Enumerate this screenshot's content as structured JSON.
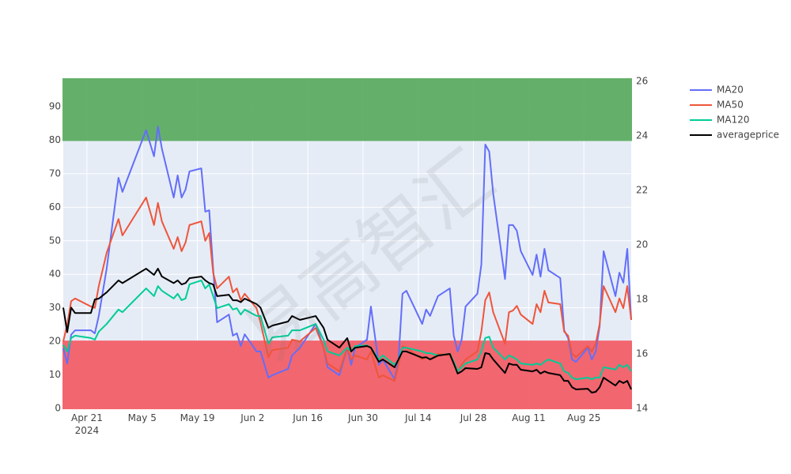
{
  "chart_data": {
    "type": "line",
    "x": [
      "2024-04-15",
      "2024-04-16",
      "2024-04-17",
      "2024-04-18",
      "2024-04-22",
      "2024-04-23",
      "2024-04-24",
      "2024-04-26",
      "2024-04-29",
      "2024-04-30",
      "2024-05-06",
      "2024-05-08",
      "2024-05-09",
      "2024-05-10",
      "2024-05-13",
      "2024-05-14",
      "2024-05-15",
      "2024-05-16",
      "2024-05-17",
      "2024-05-20",
      "2024-05-21",
      "2024-05-22",
      "2024-05-23",
      "2024-05-24",
      "2024-05-27",
      "2024-05-28",
      "2024-05-29",
      "2024-05-30",
      "2024-05-31",
      "2024-06-03",
      "2024-06-04",
      "2024-06-06",
      "2024-06-07",
      "2024-06-11",
      "2024-06-12",
      "2024-06-14",
      "2024-06-18",
      "2024-06-20",
      "2024-06-21",
      "2024-06-24",
      "2024-06-26",
      "2024-06-27",
      "2024-06-28",
      "2024-07-01",
      "2024-07-02",
      "2024-07-04",
      "2024-07-05",
      "2024-07-08",
      "2024-07-09",
      "2024-07-10",
      "2024-07-11",
      "2024-07-15",
      "2024-07-16",
      "2024-07-17",
      "2024-07-19",
      "2024-07-22",
      "2024-07-23",
      "2024-07-24",
      "2024-07-25",
      "2024-07-26",
      "2024-07-29",
      "2024-07-30",
      "2024-07-31",
      "2024-08-01",
      "2024-08-02",
      "2024-08-05",
      "2024-08-06",
      "2024-08-07",
      "2024-08-08",
      "2024-08-09",
      "2024-08-12",
      "2024-08-13",
      "2024-08-14",
      "2024-08-15",
      "2024-08-16",
      "2024-08-19",
      "2024-08-20",
      "2024-08-21",
      "2024-08-22",
      "2024-08-23",
      "2024-08-26",
      "2024-08-27",
      "2024-08-28",
      "2024-08-29",
      "2024-08-30",
      "2024-09-02",
      "2024-09-03",
      "2024-09-04",
      "2024-09-05",
      "2024-09-06"
    ],
    "series": [
      {
        "name": "MA20",
        "color": "#636efa",
        "values": [
          18,
          13.4,
          22,
          23.3,
          23.3,
          22.4,
          27.6,
          41.7,
          68.8,
          64.6,
          83,
          75.2,
          84.1,
          77.5,
          62.9,
          69.5,
          62.9,
          65.3,
          70.7,
          71.6,
          58.7,
          59.1,
          41.7,
          25.7,
          28,
          21.7,
          22.4,
          18.6,
          22.1,
          17,
          17,
          9.2,
          9.9,
          11.8,
          15.8,
          18.1,
          25.2,
          18.1,
          12.3,
          9.9,
          18.1,
          13,
          18.1,
          20.5,
          30.4,
          13,
          14.6,
          8.7,
          14.6,
          34.2,
          35.1,
          25.2,
          29.5,
          27.6,
          33.5,
          35.8,
          21.7,
          17,
          20.5,
          30.4,
          34.2,
          42.9,
          78.7,
          76.6,
          64.1,
          38.6,
          54.7,
          54.7,
          53,
          46.9,
          39.8,
          45.9,
          39.3,
          47.6,
          41.2,
          38.9,
          23.3,
          21,
          14.6,
          13.9,
          18.1,
          14.6,
          17,
          24.5,
          46.9,
          33.5,
          40.5,
          37.5,
          47.6,
          26.4
        ]
      },
      {
        "name": "MA50",
        "color": "#ef553b",
        "values": [
          20,
          25,
          32,
          32.8,
          30.4,
          30,
          36.5,
          46.4,
          56.5,
          51.6,
          62.9,
          54.7,
          61.3,
          55.8,
          47.6,
          51.1,
          46.9,
          49.5,
          54.7,
          55.8,
          50,
          52.3,
          40.5,
          35.8,
          39.3,
          34.6,
          35.8,
          32.3,
          34.2,
          29.9,
          25.7,
          15.3,
          17.4,
          18.1,
          20.5,
          20,
          24,
          18.1,
          13.4,
          11.1,
          18.1,
          14.6,
          15.8,
          14.6,
          17,
          9.2,
          9.9,
          8.2,
          13,
          18.6,
          18.1,
          14.6,
          15.3,
          14.6,
          16.3,
          15.8,
          13.4,
          11.1,
          13,
          14.6,
          17,
          22.9,
          32.3,
          34.6,
          28.7,
          19.3,
          28.7,
          29.2,
          30.6,
          28,
          25.2,
          31.1,
          28.7,
          35.1,
          31.6,
          31.1,
          22.9,
          21.7,
          16.3,
          15.3,
          18.6,
          17,
          19.3,
          25.2,
          36.5,
          28.7,
          32.8,
          29.9,
          36.5,
          26.4
        ]
      },
      {
        "name": "MA120",
        "color": "#00cc96",
        "values": [
          19,
          17,
          21,
          21.7,
          21,
          20.5,
          22.9,
          25.2,
          29.5,
          28.7,
          35.8,
          33.5,
          36.5,
          35.1,
          32.8,
          34.2,
          32.3,
          32.8,
          37,
          38.2,
          35.8,
          37,
          33.5,
          29.9,
          31.1,
          29.5,
          29.9,
          28,
          29.5,
          27.6,
          27.6,
          19.3,
          21.2,
          21.7,
          23.3,
          23.3,
          25.2,
          20.5,
          17,
          15.8,
          18.1,
          17,
          18.6,
          18.8,
          18.1,
          14.6,
          15.8,
          13,
          14.6,
          18.1,
          18.1,
          17,
          16.5,
          16.5,
          15.8,
          16.3,
          13.9,
          11.1,
          12.3,
          13.4,
          14.6,
          17,
          21,
          21.4,
          18.1,
          14.6,
          15.8,
          15.3,
          14.6,
          13.4,
          13,
          13.4,
          13,
          13.9,
          14.6,
          13.4,
          11.1,
          10.6,
          9.2,
          8.7,
          9.2,
          8.7,
          9.2,
          9.2,
          12.3,
          11.6,
          13,
          12.3,
          13,
          11.1
        ]
      },
      {
        "name": "averageprice",
        "color": "#000000",
        "axis": "y2",
        "values": [
          17.7,
          16.8,
          17.7,
          17.5,
          17.5,
          18,
          18.03,
          18.26,
          18.7,
          18.6,
          19.13,
          18.9,
          19.13,
          18.84,
          18.6,
          18.7,
          18.55,
          18.6,
          18.78,
          18.84,
          18.7,
          18.6,
          18.55,
          18.12,
          18.17,
          17.97,
          17.97,
          17.9,
          18.03,
          17.83,
          17.7,
          16.96,
          17.04,
          17.19,
          17.39,
          17.25,
          17.39,
          16.96,
          16.52,
          16.23,
          16.58,
          16.09,
          16.23,
          16.29,
          16.23,
          15.71,
          15.8,
          15.51,
          15.8,
          16.09,
          16.09,
          15.86,
          15.88,
          15.8,
          15.94,
          16,
          15.65,
          15.28,
          15.36,
          15.48,
          15.45,
          15.51,
          16.03,
          16,
          15.8,
          15.3,
          15.65,
          15.6,
          15.6,
          15.42,
          15.36,
          15.42,
          15.28,
          15.36,
          15.3,
          15.22,
          15.01,
          15.01,
          14.78,
          14.7,
          14.72,
          14.58,
          14.61,
          14.78,
          15.13,
          14.84,
          15.01,
          14.93,
          15.01,
          14.7
        ]
      }
    ],
    "xlim": [
      "2024-04-15",
      "2024-09-06"
    ],
    "xticks": [
      {
        "value": "2024-04-21",
        "label": "Apr 21\n2024"
      },
      {
        "value": "2024-05-05",
        "label": "May 5"
      },
      {
        "value": "2024-05-19",
        "label": "May 19"
      },
      {
        "value": "2024-06-02",
        "label": "Jun 2"
      },
      {
        "value": "2024-06-16",
        "label": "Jun 16"
      },
      {
        "value": "2024-06-30",
        "label": "Jun 30"
      },
      {
        "value": "2024-07-14",
        "label": "Jul 14"
      },
      {
        "value": "2024-07-28",
        "label": "Jul 28"
      },
      {
        "value": "2024-08-11",
        "label": "Aug 11"
      },
      {
        "value": "2024-08-25",
        "label": "Aug 25"
      }
    ],
    "ylim": [
      0,
      98.26
    ],
    "yticks": [
      0,
      10,
      20,
      30,
      40,
      50,
      60,
      70,
      80,
      90
    ],
    "y2lim": [
      14,
      26.09
    ],
    "y2ticks": [
      14,
      16,
      18,
      20,
      22,
      24,
      26
    ],
    "bands": [
      {
        "y0": 80,
        "y1": 98.26,
        "color": "#5aab5f"
      },
      {
        "y0": 0,
        "y1": 20,
        "color": "#f45b64"
      }
    ],
    "grid": true,
    "legend": "right",
    "watermark": "易高智汇"
  }
}
